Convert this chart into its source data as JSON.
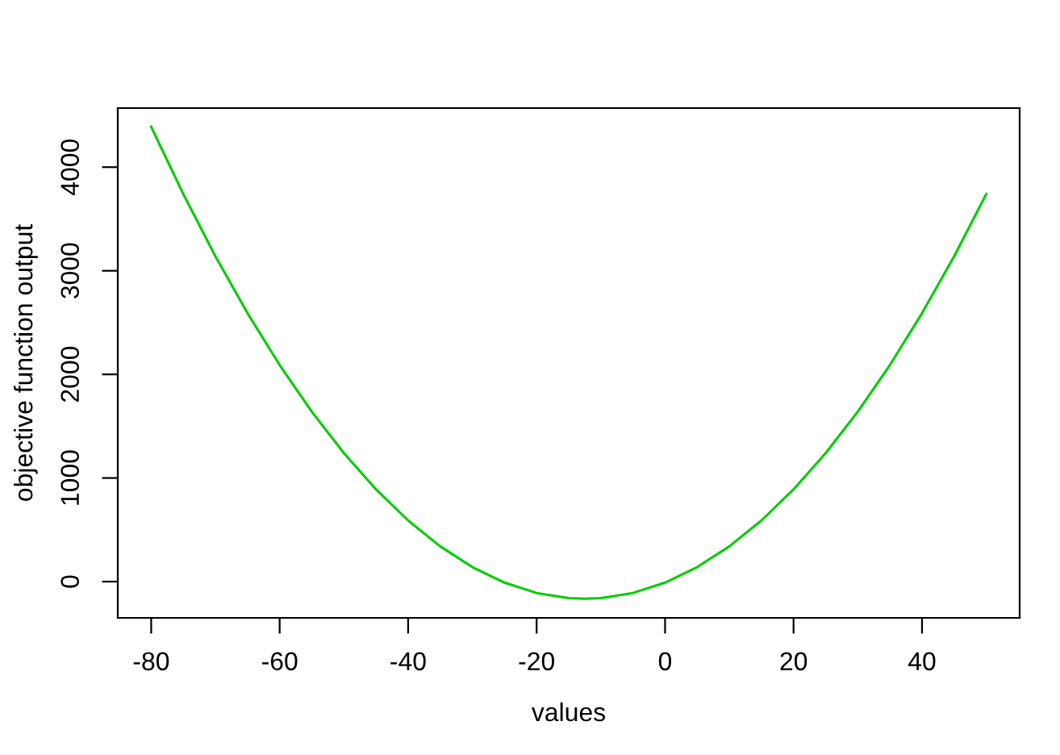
{
  "chart_data": {
    "type": "line",
    "xlabel": "values",
    "ylabel": "objective function output",
    "x": [
      -80,
      -75,
      -70,
      -65,
      -60,
      -55,
      -50,
      -45,
      -40,
      -35,
      -30,
      -25,
      -20,
      -15,
      -12.5,
      -10,
      -5,
      0,
      5,
      10,
      15,
      20,
      25,
      30,
      35,
      40,
      45,
      50
    ],
    "series": [
      {
        "color": "#00cd00",
        "values": [
          4390,
          3740,
          3140,
          2590,
          2090,
          1640,
          1240,
          890,
          590,
          340,
          140,
          -10,
          -110,
          -160,
          -165,
          -160,
          -110,
          -10,
          140,
          340,
          590,
          890,
          1240,
          1640,
          2090,
          2590,
          3140,
          3740
        ]
      }
    ],
    "xlim": [
      -85.2,
      55.2
    ],
    "ylim": [
      -350,
      4570
    ],
    "xticks": [
      -80,
      -60,
      -40,
      -20,
      0,
      20,
      40
    ],
    "yticks": [
      0,
      1000,
      2000,
      3000,
      4000
    ],
    "grid": false,
    "legend": false,
    "marker": "none",
    "line_style": "solid"
  }
}
